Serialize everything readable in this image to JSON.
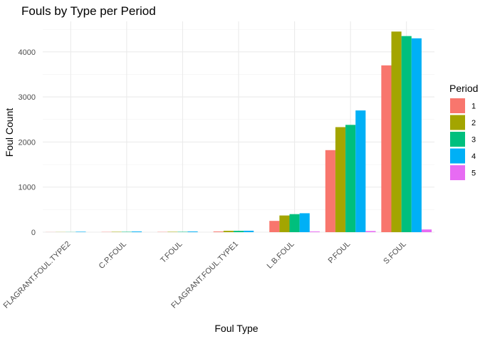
{
  "chart_data": {
    "type": "bar",
    "title": "Fouls by Type per Period",
    "xlabel": "Foul Type",
    "ylabel": "Foul Count",
    "ylim": [
      0,
      4600
    ],
    "yticks": [
      0,
      1000,
      2000,
      3000,
      4000
    ],
    "grid": true,
    "legend": {
      "title": "Period",
      "position": "right"
    },
    "categories": [
      "FLAGRANT.FOUL.TYPE2",
      "C.P.FOUL",
      "T.FOUL",
      "FLAGRANT.FOUL.TYPE1",
      "L.B.FOUL",
      "P.FOUL",
      "S.FOUL"
    ],
    "series": [
      {
        "name": "1",
        "color": "#F8766D",
        "values": [
          2,
          5,
          5,
          15,
          250,
          1820,
          3700
        ]
      },
      {
        "name": "2",
        "color": "#A3A500",
        "values": [
          3,
          8,
          8,
          30,
          370,
          2330,
          4450
        ]
      },
      {
        "name": "3",
        "color": "#00BF7D",
        "values": [
          3,
          8,
          8,
          30,
          400,
          2380,
          4350
        ]
      },
      {
        "name": "4",
        "color": "#00B0F6",
        "values": [
          10,
          15,
          15,
          32,
          420,
          2700,
          4300
        ]
      },
      {
        "name": "5",
        "color": "#E76BF3",
        "values": [
          0,
          0,
          0,
          0,
          15,
          25,
          60
        ]
      }
    ]
  }
}
